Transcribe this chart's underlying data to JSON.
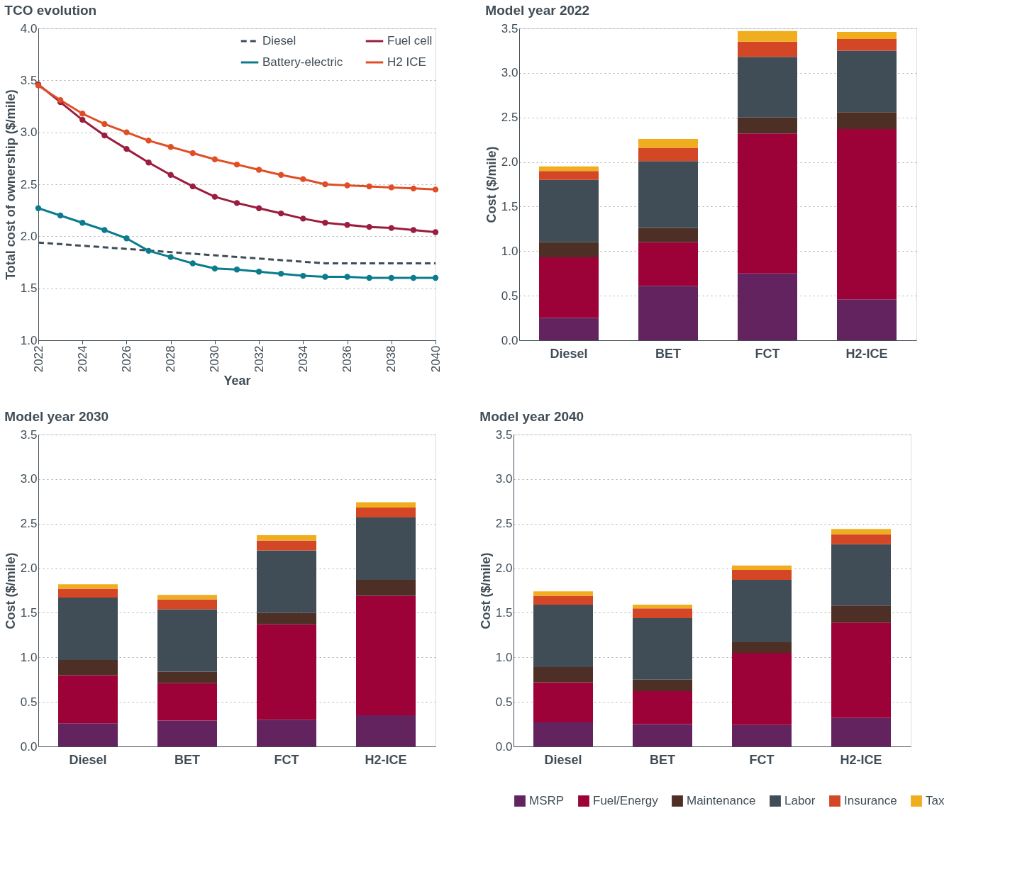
{
  "chart_data": [
    {
      "type": "line",
      "title": "TCO evolution",
      "xlabel": "Year",
      "ylabel": "Total cost of ownership ($/mile)",
      "x": [
        2022,
        2023,
        2024,
        2025,
        2026,
        2027,
        2028,
        2029,
        2030,
        2031,
        2032,
        2033,
        2034,
        2035,
        2036,
        2037,
        2038,
        2039,
        2040
      ],
      "series": [
        {
          "name": "Diesel",
          "color": "#404d56",
          "x": [
            2022,
            2035,
            2040
          ],
          "values": [
            1.94,
            1.74,
            1.74
          ],
          "line_style": "dashed",
          "marker": "none"
        },
        {
          "name": "Battery-electric",
          "color": "#0b7c8e",
          "values": [
            2.27,
            2.2,
            2.13,
            2.06,
            1.98,
            1.86,
            1.8,
            1.74,
            1.69,
            1.68,
            1.66,
            1.64,
            1.62,
            1.61,
            1.61,
            1.6,
            1.6,
            1.6,
            1.6
          ]
        },
        {
          "name": "Fuel cell",
          "color": "#9b1d3f",
          "values": [
            3.46,
            3.29,
            3.12,
            2.97,
            2.84,
            2.71,
            2.59,
            2.48,
            2.38,
            2.32,
            2.27,
            2.22,
            2.17,
            2.13,
            2.11,
            2.09,
            2.08,
            2.06,
            2.04
          ]
        },
        {
          "name": "H2 ICE",
          "color": "#e04e26",
          "values": [
            3.45,
            3.31,
            3.18,
            3.08,
            3.0,
            2.92,
            2.86,
            2.8,
            2.74,
            2.69,
            2.64,
            2.59,
            2.55,
            2.5,
            2.49,
            2.48,
            2.47,
            2.46,
            2.45
          ]
        }
      ],
      "xlim": [
        2022,
        2040
      ],
      "xticks": [
        2022,
        2024,
        2026,
        2028,
        2030,
        2032,
        2034,
        2036,
        2038,
        2040
      ],
      "ylim": [
        1,
        4
      ],
      "yticks": [
        {
          "value": 1,
          "label": "1.0"
        },
        {
          "value": 1.5,
          "label": "1.5"
        },
        {
          "value": 2,
          "label": "2.0"
        },
        {
          "value": 2.5,
          "label": "2.5"
        },
        {
          "value": 3,
          "label": "3.0"
        },
        {
          "value": 3.5,
          "label": "3.5"
        },
        {
          "value": 4,
          "label": "4.0"
        }
      ],
      "grid": "y",
      "legend": "top right",
      "marker": "circle",
      "line_style": "solid"
    },
    {
      "type": "bar",
      "stacked": true,
      "title": "Model year 2022",
      "ylabel": "Cost ($/mile)",
      "categories": [
        "Diesel",
        "BET",
        "FCT",
        "H2-ICE"
      ],
      "series": [
        {
          "color": "#62235f",
          "values": [
            0.25,
            0.61,
            0.75,
            0.46
          ]
        },
        {
          "color": "#9c0238",
          "values": [
            0.68,
            0.49,
            1.57,
            1.91
          ]
        },
        {
          "color": "#4e2f26",
          "values": [
            0.17,
            0.16,
            0.18,
            0.19
          ]
        },
        {
          "color": "#404d56",
          "values": [
            0.7,
            0.75,
            0.68,
            0.69
          ]
        },
        {
          "color": "#d34727",
          "values": [
            0.1,
            0.15,
            0.17,
            0.13
          ]
        },
        {
          "color": "#f0ad1e",
          "values": [
            0.05,
            0.1,
            0.12,
            0.08
          ]
        }
      ],
      "ylim": [
        0,
        3.5
      ],
      "yticks": [
        {
          "value": 0,
          "label": "0.0"
        },
        {
          "value": 0.5,
          "label": "0.5"
        },
        {
          "value": 1,
          "label": "1.0"
        },
        {
          "value": 1.5,
          "label": "1.5"
        },
        {
          "value": 2,
          "label": "2.0"
        },
        {
          "value": 2.5,
          "label": "2.5"
        },
        {
          "value": 3,
          "label": "3.0"
        },
        {
          "value": 3.5,
          "label": "3.5"
        }
      ],
      "grid": "y"
    },
    {
      "type": "bar",
      "stacked": true,
      "title": "Model year 2030",
      "ylabel": "Cost ($/mile)",
      "categories": [
        "Diesel",
        "BET",
        "FCT",
        "H2-ICE"
      ],
      "series": [
        {
          "color": "#62235f",
          "values": [
            0.26,
            0.29,
            0.3,
            0.35
          ]
        },
        {
          "color": "#9c0238",
          "values": [
            0.54,
            0.42,
            1.07,
            1.34
          ]
        },
        {
          "color": "#4e2f26",
          "values": [
            0.17,
            0.13,
            0.13,
            0.18
          ]
        },
        {
          "color": "#404d56",
          "values": [
            0.7,
            0.7,
            0.7,
            0.7
          ]
        },
        {
          "color": "#d34727",
          "values": [
            0.1,
            0.11,
            0.11,
            0.11
          ]
        },
        {
          "color": "#f0ad1e",
          "values": [
            0.05,
            0.05,
            0.06,
            0.06
          ]
        }
      ],
      "ylim": [
        0,
        3.5
      ],
      "yticks": [
        {
          "value": 0,
          "label": "0.0"
        },
        {
          "value": 0.5,
          "label": "0.5"
        },
        {
          "value": 1,
          "label": "1.0"
        },
        {
          "value": 1.5,
          "label": "1.5"
        },
        {
          "value": 2,
          "label": "2.0"
        },
        {
          "value": 2.5,
          "label": "2.5"
        },
        {
          "value": 3,
          "label": "3.0"
        },
        {
          "value": 3.5,
          "label": "3.5"
        }
      ],
      "grid": "y"
    },
    {
      "type": "bar",
      "stacked": true,
      "title": "Model year 2040",
      "ylabel": "Cost ($/mile)",
      "categories": [
        "Diesel",
        "BET",
        "FCT",
        "H2-ICE"
      ],
      "series": [
        {
          "name": "MSRP",
          "color": "#62235f",
          "values": [
            0.27,
            0.25,
            0.24,
            0.32
          ]
        },
        {
          "name": "Fuel/Energy",
          "color": "#9c0238",
          "values": [
            0.45,
            0.37,
            0.81,
            1.07
          ]
        },
        {
          "name": "Maintenance",
          "color": "#4e2f26",
          "values": [
            0.17,
            0.13,
            0.12,
            0.19
          ]
        },
        {
          "name": "Labor",
          "color": "#404d56",
          "values": [
            0.7,
            0.69,
            0.7,
            0.69
          ]
        },
        {
          "name": "Insurance",
          "color": "#d34727",
          "values": [
            0.1,
            0.11,
            0.11,
            0.11
          ]
        },
        {
          "name": "Tax",
          "color": "#f0ad1e",
          "values": [
            0.05,
            0.04,
            0.05,
            0.06
          ]
        }
      ],
      "ylim": [
        0,
        3.5
      ],
      "yticks": [
        {
          "value": 0,
          "label": "0.0"
        },
        {
          "value": 0.5,
          "label": "0.5"
        },
        {
          "value": 1,
          "label": "1.0"
        },
        {
          "value": 1.5,
          "label": "1.5"
        },
        {
          "value": 2,
          "label": "2.0"
        },
        {
          "value": 2.5,
          "label": "2.5"
        },
        {
          "value": 3,
          "label": "3.0"
        },
        {
          "value": 3.5,
          "label": "3.5"
        }
      ],
      "grid": "y",
      "legend": "bottom"
    }
  ]
}
